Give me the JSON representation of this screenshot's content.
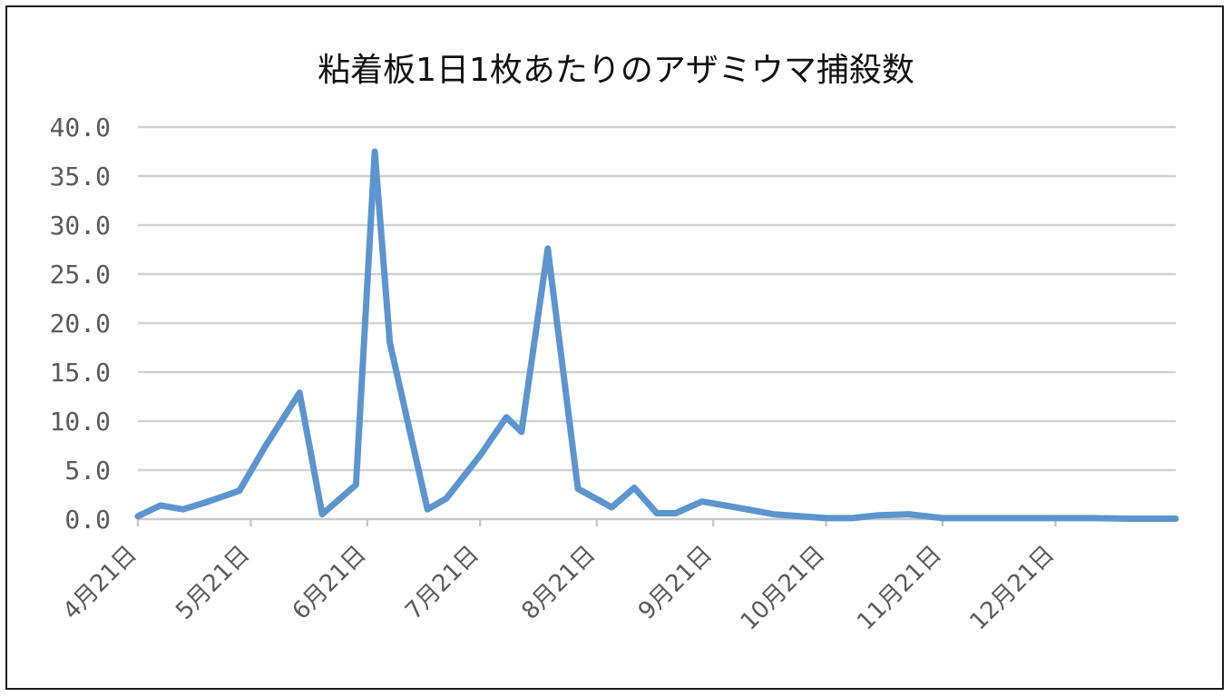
{
  "chart_data": {
    "type": "line",
    "title": "粘着板1日1枚あたりのアザミウマ捕殺数",
    "xlabel": "",
    "ylabel": "",
    "ylim": [
      0,
      40
    ],
    "yticks": [
      0,
      5,
      10,
      15,
      20,
      25,
      30,
      35,
      40
    ],
    "ytick_labels": [
      "0.0",
      "5.0",
      "10.0",
      "15.0",
      "20.0",
      "25.0",
      "30.0",
      "35.0",
      "40.0"
    ],
    "x_range": [
      "4月21日",
      "1月22日"
    ],
    "xtick_labels": [
      "4月21日",
      "5月21日",
      "6月21日",
      "7月21日",
      "8月21日",
      "9月21日",
      "10月21日",
      "11月21日",
      "12月21日"
    ],
    "grid": true,
    "legend": "none",
    "series_color": "#5b94cf",
    "series": [
      {
        "points": [
          [
            "4月21日",
            0.3
          ],
          [
            "4月27日",
            1.4
          ],
          [
            "5月3日",
            1.0
          ],
          [
            "5月9日",
            1.7
          ],
          [
            "5月18日",
            2.9
          ],
          [
            "5月25日",
            7.5
          ],
          [
            "6月3日",
            12.9
          ],
          [
            "6月9日",
            0.5
          ],
          [
            "6月18日",
            3.5
          ],
          [
            "6月23日",
            37.5
          ],
          [
            "6月27日",
            18.0
          ],
          [
            "7月7日",
            1.0
          ],
          [
            "7月12日",
            2.1
          ],
          [
            "7月21日",
            6.5
          ],
          [
            "7月28日",
            10.4
          ],
          [
            "8月1日",
            8.9
          ],
          [
            "8月8日",
            27.6
          ],
          [
            "8月16日",
            3.1
          ],
          [
            "8月25日",
            1.2
          ],
          [
            "8月31日",
            3.2
          ],
          [
            "9月6日",
            0.6
          ],
          [
            "9月11日",
            0.6
          ],
          [
            "9月18日",
            1.8
          ],
          [
            "9月27日",
            1.2
          ],
          [
            "10月7日",
            0.5
          ],
          [
            "10月21日",
            0.1
          ],
          [
            "10月28日",
            0.1
          ],
          [
            "11月4日",
            0.4
          ],
          [
            "11月12日",
            0.5
          ],
          [
            "11月21日",
            0.1
          ],
          [
            "12月1日",
            0.1
          ],
          [
            "12月12日",
            0.1
          ],
          [
            "12月21日",
            0.1
          ],
          [
            "12月31日",
            0.1
          ],
          [
            "1月10日",
            0.05
          ],
          [
            "1月22日",
            0.05
          ]
        ]
      }
    ]
  }
}
